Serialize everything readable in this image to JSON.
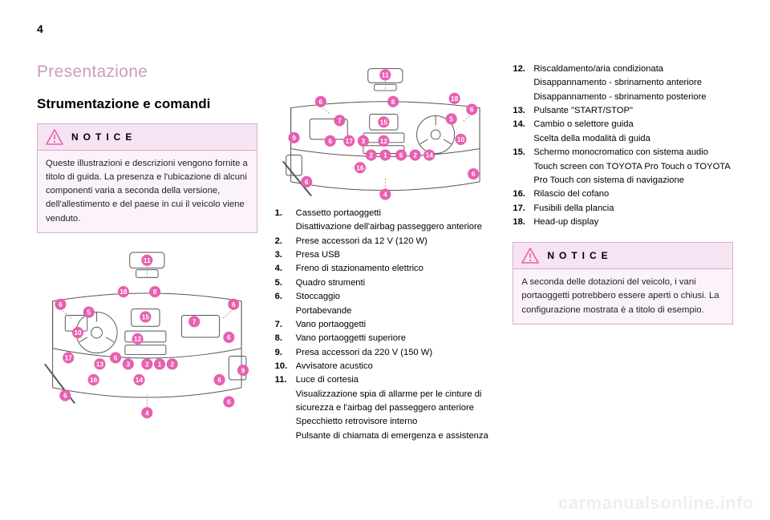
{
  "pageNumber": "4",
  "overview": "Presentazione",
  "sectionHeading": "Strumentazione e comandi",
  "notice1": {
    "title": "NOTICE",
    "body": "Queste illustrazioni e descrizioni vengono fornite a titolo di guida. La presenza e l'ubicazione di alcuni componenti varia a seconda della versione, dell'allestimento e del paese in cui il veicolo viene venduto."
  },
  "notice2": {
    "title": "NOTICE",
    "body": "A seconda delle dotazioni del veicolo, i vani portaoggetti potrebbero essere aperti o chiusi. La configurazione mostrata è a titolo di esempio."
  },
  "listMiddle": [
    {
      "n": "1.",
      "t": "Cassetto portaoggetti",
      "sub": [
        "Disattivazione dell'airbag passeggero anteriore"
      ]
    },
    {
      "n": "2.",
      "t": "Prese accessori da 12 V (120 W)"
    },
    {
      "n": "3.",
      "t": "Presa USB"
    },
    {
      "n": "4.",
      "t": "Freno di stazionamento elettrico"
    },
    {
      "n": "5.",
      "t": "Quadro strumenti"
    },
    {
      "n": "6.",
      "t": "Stoccaggio",
      "sub": [
        "Portabevande"
      ]
    },
    {
      "n": "7.",
      "t": "Vano portaoggetti"
    },
    {
      "n": "8.",
      "t": "Vano portaoggetti superiore"
    },
    {
      "n": "9.",
      "t": "Presa accessori da 220 V (150 W)"
    },
    {
      "n": "10.",
      "t": "Avvisatore acustico"
    },
    {
      "n": "11.",
      "t": "Luce di cortesia",
      "sub": [
        "Visualizzazione spia di allarme per le cinture di sicurezza e l'airbag del passeggero anteriore",
        "Specchietto retrovisore interno",
        "Pulsante di chiamata di emergenza e assistenza"
      ]
    }
  ],
  "listRight": [
    {
      "n": "12.",
      "t": "Riscaldamento/aria condizionata",
      "sub": [
        "Disappannamento - sbrinamento anteriore",
        "Disappannamento - sbrinamento posteriore"
      ]
    },
    {
      "n": "13.",
      "t": "Pulsante \"START/STOP\""
    },
    {
      "n": "14.",
      "t": "Cambio o selettore guida",
      "sub": [
        "Scelta della modalità di guida"
      ]
    },
    {
      "n": "15.",
      "t": "Schermo monocromatico con sistema audio",
      "sub": [
        "Touch screen con TOYOTA Pro Touch o TOYOTA Pro Touch con sistema di navigazione"
      ]
    },
    {
      "n": "16.",
      "t": "Rilascio del cofano"
    },
    {
      "n": "17.",
      "t": "Fusibili della plancia"
    },
    {
      "n": "18.",
      "t": "Head-up display"
    }
  ],
  "diagram1Labels": [
    "11",
    "18",
    "6",
    "8",
    "6",
    "5",
    "15",
    "10",
    "7",
    "6",
    "12",
    "6",
    "17",
    "13",
    "3",
    "2",
    "1",
    "2",
    "6",
    "9",
    "16",
    "14",
    "6",
    "4",
    "6"
  ],
  "diagram2Labels": [
    "11",
    "6",
    "8",
    "18",
    "6",
    "7",
    "15",
    "5",
    "9",
    "6",
    "17",
    "3",
    "12",
    "2",
    "1",
    "6",
    "2",
    "14",
    "10",
    "16",
    "6",
    "4",
    "6"
  ],
  "style": {
    "calloutFill": "#e85fb0",
    "calloutStroke": "#e85fb0",
    "calloutText": "#ffffff",
    "dashLine": "#888888",
    "dashLineDark": "#444444",
    "noticeBorder": "#d7add0",
    "noticeHeadBg": "#f6e4f2",
    "noticeBodyBg": "#fbf3f9",
    "warnStroke": "#e85fb0",
    "overviewColor": "#c99ebc"
  },
  "watermark": "carmanualsonline.info"
}
